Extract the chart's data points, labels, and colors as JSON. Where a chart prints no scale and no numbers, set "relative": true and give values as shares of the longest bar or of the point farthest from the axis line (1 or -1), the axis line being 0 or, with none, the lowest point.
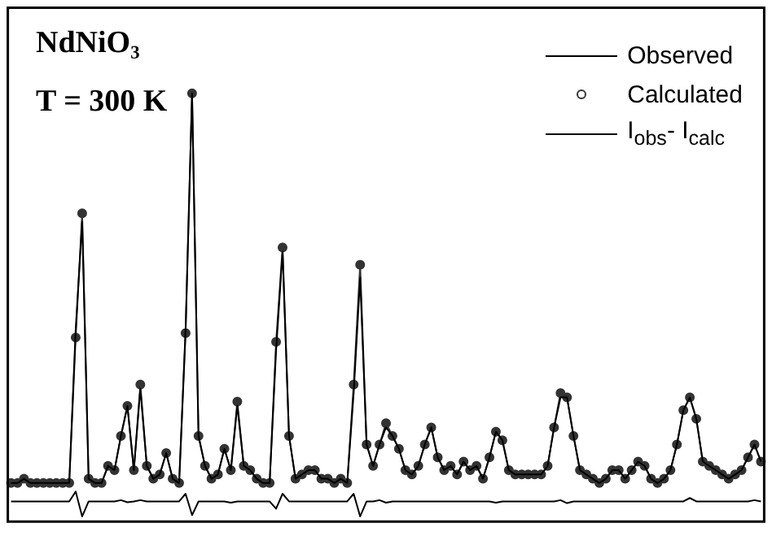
{
  "chart_data": {
    "type": "line",
    "title": "NdNiO₃",
    "subtitle": "T = 300 K",
    "relative": true,
    "legend": "top right",
    "grid": false,
    "marker": "none",
    "categories": [
      null,
      null,
      null,
      null,
      null,
      null,
      null,
      null,
      null,
      null,
      null,
      null,
      null,
      null,
      null,
      null,
      null,
      null,
      null,
      null,
      null,
      null,
      null,
      null,
      null,
      null,
      null,
      null,
      null,
      null,
      null,
      null,
      null,
      null,
      null,
      null,
      null,
      null,
      null,
      null,
      null,
      null,
      null,
      null,
      null,
      null,
      null,
      null,
      null,
      null,
      null,
      null,
      null,
      null,
      null,
      null,
      null,
      null,
      null,
      null,
      null,
      null,
      null,
      null,
      null,
      null,
      null,
      null,
      null,
      null,
      null,
      null,
      null,
      null,
      null,
      null,
      null,
      null,
      null,
      null,
      null,
      null,
      null,
      null,
      null,
      null,
      null,
      null,
      null,
      null,
      null,
      null,
      null,
      null,
      null,
      null,
      null,
      null,
      null,
      null,
      null,
      null,
      null,
      null,
      null,
      null,
      null,
      null,
      null,
      null,
      null,
      null,
      null,
      null,
      null,
      null,
      null
    ],
    "series": [
      {
        "name": "Observed",
        "type": "line",
        "color": "#000000",
        "values": [
          0.09,
          0.09,
          0.1,
          0.09,
          0.09,
          0.09,
          0.09,
          0.09,
          0.09,
          0.09,
          0.45,
          0.7,
          0.1,
          0.09,
          0.09,
          0.13,
          0.12,
          0.2,
          0.27,
          0.12,
          0.31,
          0.13,
          0.1,
          0.11,
          0.16,
          0.1,
          0.09,
          0.45,
          1.0,
          0.2,
          0.13,
          0.1,
          0.11,
          0.17,
          0.12,
          0.27,
          0.13,
          0.12,
          0.1,
          0.09,
          0.09,
          0.4,
          0.63,
          0.2,
          0.1,
          0.11,
          0.12,
          0.12,
          0.1,
          0.1,
          0.09,
          0.1,
          0.09,
          0.3,
          0.57,
          0.18,
          0.13,
          0.18,
          0.22,
          0.2,
          0.17,
          0.12,
          0.11,
          0.13,
          0.18,
          0.22,
          0.15,
          0.12,
          0.13,
          0.11,
          0.14,
          0.12,
          0.13,
          0.1,
          0.15,
          0.21,
          0.19,
          0.12,
          0.11,
          0.11,
          0.11,
          0.11,
          0.11,
          0.13,
          0.22,
          0.29,
          0.29,
          0.2,
          0.12,
          0.11,
          0.1,
          0.09,
          0.1,
          0.12,
          0.12,
          0.1,
          0.12,
          0.14,
          0.13,
          0.1,
          0.09,
          0.1,
          0.12,
          0.18,
          0.26,
          0.29,
          0.24,
          0.14,
          0.13,
          0.12,
          0.11,
          0.1,
          0.11,
          0.12,
          0.15,
          0.18,
          0.14
        ]
      },
      {
        "name": "Calculated",
        "type": "line",
        "marker": "circle",
        "color": "#333333",
        "values": [
          0.09,
          0.09,
          0.1,
          0.09,
          0.09,
          0.09,
          0.09,
          0.09,
          0.09,
          0.09,
          0.43,
          0.72,
          0.1,
          0.09,
          0.09,
          0.13,
          0.12,
          0.2,
          0.27,
          0.12,
          0.32,
          0.13,
          0.1,
          0.11,
          0.16,
          0.1,
          0.09,
          0.44,
          1.0,
          0.2,
          0.13,
          0.1,
          0.11,
          0.17,
          0.12,
          0.28,
          0.13,
          0.12,
          0.1,
          0.09,
          0.09,
          0.42,
          0.64,
          0.2,
          0.1,
          0.11,
          0.12,
          0.12,
          0.1,
          0.1,
          0.09,
          0.1,
          0.09,
          0.32,
          0.6,
          0.18,
          0.13,
          0.18,
          0.23,
          0.2,
          0.17,
          0.12,
          0.11,
          0.13,
          0.18,
          0.22,
          0.15,
          0.12,
          0.13,
          0.11,
          0.14,
          0.12,
          0.13,
          0.1,
          0.15,
          0.21,
          0.19,
          0.12,
          0.11,
          0.11,
          0.11,
          0.11,
          0.11,
          0.13,
          0.22,
          0.3,
          0.29,
          0.2,
          0.12,
          0.11,
          0.1,
          0.09,
          0.1,
          0.12,
          0.12,
          0.1,
          0.12,
          0.14,
          0.13,
          0.1,
          0.09,
          0.1,
          0.12,
          0.18,
          0.26,
          0.29,
          0.24,
          0.14,
          0.13,
          0.12,
          0.11,
          0.1,
          0.11,
          0.12,
          0.15,
          0.18,
          0.14
        ]
      },
      {
        "name": "I$_{obs}$- I$_{calc}$",
        "type": "line",
        "color": "#000000",
        "values": [
          0.047,
          0.047,
          0.047,
          0.047,
          0.047,
          0.047,
          0.047,
          0.047,
          0.047,
          0.047,
          0.07,
          0.012,
          0.047,
          0.047,
          0.047,
          0.047,
          0.047,
          0.05,
          0.045,
          0.047,
          0.05,
          0.047,
          0.047,
          0.047,
          0.047,
          0.047,
          0.047,
          0.065,
          0.015,
          0.047,
          0.047,
          0.047,
          0.047,
          0.047,
          0.044,
          0.047,
          0.047,
          0.047,
          0.047,
          0.047,
          0.047,
          0.03,
          0.065,
          0.047,
          0.047,
          0.047,
          0.047,
          0.047,
          0.047,
          0.047,
          0.047,
          0.047,
          0.047,
          0.065,
          0.012,
          0.047,
          0.047,
          0.05,
          0.044,
          0.047,
          0.047,
          0.047,
          0.047,
          0.047,
          0.047,
          0.047,
          0.047,
          0.047,
          0.047,
          0.047,
          0.047,
          0.047,
          0.047,
          0.047,
          0.047,
          0.044,
          0.047,
          0.047,
          0.047,
          0.047,
          0.047,
          0.047,
          0.047,
          0.047,
          0.047,
          0.05,
          0.043,
          0.047,
          0.047,
          0.047,
          0.047,
          0.047,
          0.047,
          0.047,
          0.047,
          0.047,
          0.047,
          0.047,
          0.047,
          0.047,
          0.047,
          0.047,
          0.047,
          0.047,
          0.047,
          0.055,
          0.047,
          0.047,
          0.047,
          0.047,
          0.047,
          0.047,
          0.047,
          0.047,
          0.047,
          0.05,
          0.047
        ]
      }
    ]
  }
}
